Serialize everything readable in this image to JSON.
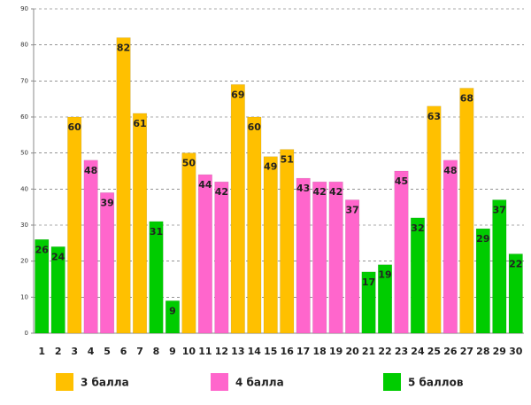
{
  "chart_data": {
    "type": "bar",
    "categories": [
      "1",
      "2",
      "3",
      "4",
      "5",
      "6",
      "7",
      "8",
      "9",
      "10",
      "11",
      "12",
      "13",
      "14",
      "15",
      "16",
      "17",
      "18",
      "19",
      "20",
      "21",
      "22",
      "23",
      "24",
      "25",
      "26",
      "27",
      "28",
      "29",
      "30"
    ],
    "series": [
      {
        "name": "3 балла",
        "color": "#FFC000",
        "values": [
          null,
          null,
          60,
          null,
          null,
          82,
          61,
          null,
          null,
          50,
          null,
          null,
          69,
          60,
          49,
          51,
          null,
          null,
          null,
          null,
          null,
          null,
          null,
          null,
          63,
          null,
          68,
          null,
          null,
          null
        ]
      },
      {
        "name": "4 балла",
        "color": "#FF66CC",
        "values": [
          null,
          null,
          null,
          48,
          39,
          null,
          null,
          null,
          null,
          null,
          44,
          42,
          null,
          null,
          null,
          null,
          43,
          42,
          42,
          37,
          null,
          null,
          45,
          null,
          null,
          48,
          null,
          null,
          null,
          null
        ]
      },
      {
        "name": "5 баллов",
        "color": "#00CC00",
        "values": [
          26,
          24,
          null,
          null,
          null,
          null,
          null,
          31,
          9,
          null,
          null,
          null,
          null,
          null,
          null,
          null,
          null,
          null,
          null,
          null,
          17,
          19,
          null,
          32,
          null,
          null,
          null,
          29,
          37,
          22
        ]
      }
    ],
    "ylim": [
      0,
      90
    ],
    "yticks": [
      0,
      10,
      20,
      30,
      40,
      50,
      60,
      70,
      80,
      90
    ],
    "grid": true
  }
}
